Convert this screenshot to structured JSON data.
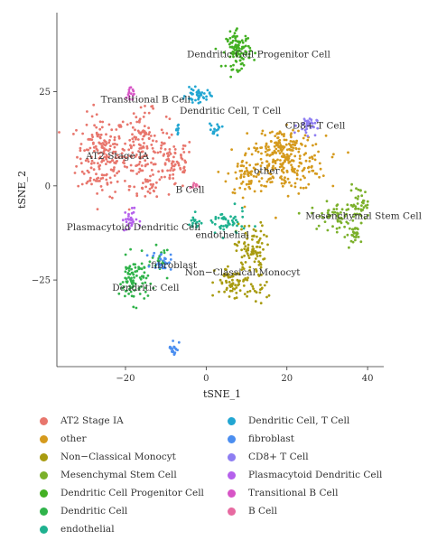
{
  "chart_data": {
    "type": "scatter",
    "xlabel": "tSNE_1",
    "ylabel": "tSNE_2",
    "xlim": [
      -37,
      44
    ],
    "ylim": [
      -48,
      46
    ],
    "x_ticks": [
      -20,
      0,
      20,
      40
    ],
    "y_ticks": [
      25,
      0,
      -25
    ],
    "x_tick_labels": [
      "−20",
      "0",
      "20",
      "40"
    ],
    "y_tick_labels": [
      "25",
      "0",
      "−25"
    ],
    "legend_placement": "bottom",
    "clusters": [
      {
        "name": "AT2 Stage IA",
        "color": "#e8766d",
        "label": "AT2 Stage IA",
        "blobs": [
          [
            -26,
            8,
            5,
            9,
            180
          ],
          [
            -16,
            10,
            5,
            8,
            150
          ],
          [
            -8,
            6,
            4,
            6,
            70
          ],
          [
            -14,
            -1,
            2,
            2,
            20
          ]
        ]
      },
      {
        "name": "other",
        "color": "#d59a1d",
        "label": "other",
        "blobs": [
          [
            20,
            6,
            8,
            6,
            220
          ],
          [
            10,
            3,
            4,
            5,
            60
          ],
          [
            18,
            12,
            5,
            3,
            60
          ]
        ]
      },
      {
        "name": "Non−Classical Monocyt",
        "color": "#a89b10",
        "label": "Non−Classical Monocyt",
        "blobs": [
          [
            11,
            -17,
            3,
            6,
            90
          ],
          [
            7,
            -26,
            4,
            4,
            70
          ],
          [
            13,
            -28,
            2,
            2,
            15
          ]
        ]
      },
      {
        "name": "Mesenchymal Stem Cell",
        "color": "#7bb02a",
        "label": "Mesenchymal Stem Cell",
        "blobs": [
          [
            32,
            -8,
            5,
            3,
            60
          ],
          [
            38,
            -5,
            2,
            4,
            40
          ],
          [
            37,
            -13,
            2,
            2,
            25
          ]
        ]
      },
      {
        "name": "Dendritic Cell Progenitor Cell",
        "color": "#43b023",
        "label": "Dendritic Cell Progenitor Cell",
        "blobs": [
          [
            8,
            36,
            2.5,
            4,
            110
          ]
        ]
      },
      {
        "name": "Dendritic Cell",
        "color": "#2fb34a",
        "label": "Dendritic Cell",
        "blobs": [
          [
            -18,
            -25,
            3,
            5,
            90
          ],
          [
            -11,
            -20,
            2,
            3,
            20
          ]
        ]
      },
      {
        "name": "endothelial",
        "color": "#1eb18f",
        "label": "endothelial",
        "blobs": [
          [
            5,
            -10,
            4,
            3,
            50
          ],
          [
            -3,
            -10,
            1.5,
            2,
            15
          ]
        ]
      },
      {
        "name": "Dendritic Cell, T Cell",
        "color": "#22a6d2",
        "label": "Dendritic Cell, T Cell",
        "blobs": [
          [
            -2,
            24,
            2.5,
            1.5,
            45
          ],
          [
            2,
            15,
            1.5,
            1.5,
            15
          ],
          [
            -7,
            15,
            0.5,
            1.5,
            8
          ]
        ]
      },
      {
        "name": "fibroblast",
        "color": "#4b8ef0",
        "label": "fibroblast",
        "blobs": [
          [
            -11,
            -20,
            2,
            2,
            30
          ],
          [
            -8,
            -43,
            1,
            2,
            20
          ]
        ]
      },
      {
        "name": "CD8+ T Cell",
        "color": "#8e7ef2",
        "label": "CD8+ T Cell",
        "blobs": [
          [
            25,
            16,
            2,
            2,
            35
          ]
        ]
      },
      {
        "name": "Plasmacytoid Dendritic Cell",
        "color": "#b561ec",
        "label": "Plasmacytoid Dendritic Cell",
        "blobs": [
          [
            -19,
            -9,
            1.5,
            2.5,
            30
          ]
        ]
      },
      {
        "name": "Transitional B Cell",
        "color": "#d755c6",
        "label": "Transitional B Cell",
        "blobs": [
          [
            -19,
            24,
            1,
            2,
            15
          ]
        ]
      },
      {
        "name": "B Cell",
        "color": "#e76aa1",
        "label": "B Cell",
        "blobs": [
          [
            -3,
            0,
            0.8,
            0.8,
            8
          ]
        ]
      }
    ],
    "labels": [
      {
        "text": "Dendritic Cell Progenitor Cell",
        "x": 13,
        "y": 35
      },
      {
        "text": "Transitional B Cell",
        "x": -15,
        "y": 23
      },
      {
        "text": "Dendritic Cell, T Cell",
        "x": 6,
        "y": 20
      },
      {
        "text": "CD8+ T Cell",
        "x": 27,
        "y": 16
      },
      {
        "text": "AT2 Stage IA",
        "x": -22,
        "y": 8
      },
      {
        "text": "other",
        "x": 15,
        "y": 4
      },
      {
        "text": "B Cell",
        "x": -4,
        "y": -1
      },
      {
        "text": "Mesenchymal Stem Cell",
        "x": 39,
        "y": -8
      },
      {
        "text": "Plasmacytoid Dendritic Cell",
        "x": -18,
        "y": -11
      },
      {
        "text": "endothelial",
        "x": 4,
        "y": -13
      },
      {
        "text": "fibroblast",
        "x": -8,
        "y": -21
      },
      {
        "text": "Non−Classical Monocyt",
        "x": 9,
        "y": -23
      },
      {
        "text": "Dendritic Cell",
        "x": -15,
        "y": -27
      }
    ]
  },
  "legend": {
    "left": [
      {
        "label": "AT2 Stage IA",
        "color": "#e8766d"
      },
      {
        "label": "other",
        "color": "#d59a1d"
      },
      {
        "label": "Non−Classical Monocyt",
        "color": "#a89b10"
      },
      {
        "label": "Mesenchymal Stem Cell",
        "color": "#7bb02a"
      },
      {
        "label": "Dendritic Cell Progenitor Cell",
        "color": "#43b023"
      },
      {
        "label": "Dendritic Cell",
        "color": "#2fb34a"
      },
      {
        "label": "endothelial",
        "color": "#1eb18f"
      }
    ],
    "right": [
      {
        "label": "Dendritic Cell, T Cell",
        "color": "#22a6d2"
      },
      {
        "label": "fibroblast",
        "color": "#4b8ef0"
      },
      {
        "label": "CD8+ T Cell",
        "color": "#8e7ef2"
      },
      {
        "label": "Plasmacytoid Dendritic Cell",
        "color": "#b561ec"
      },
      {
        "label": "Transitional B Cell",
        "color": "#d755c6"
      },
      {
        "label": "B Cell",
        "color": "#e76aa1"
      }
    ]
  }
}
